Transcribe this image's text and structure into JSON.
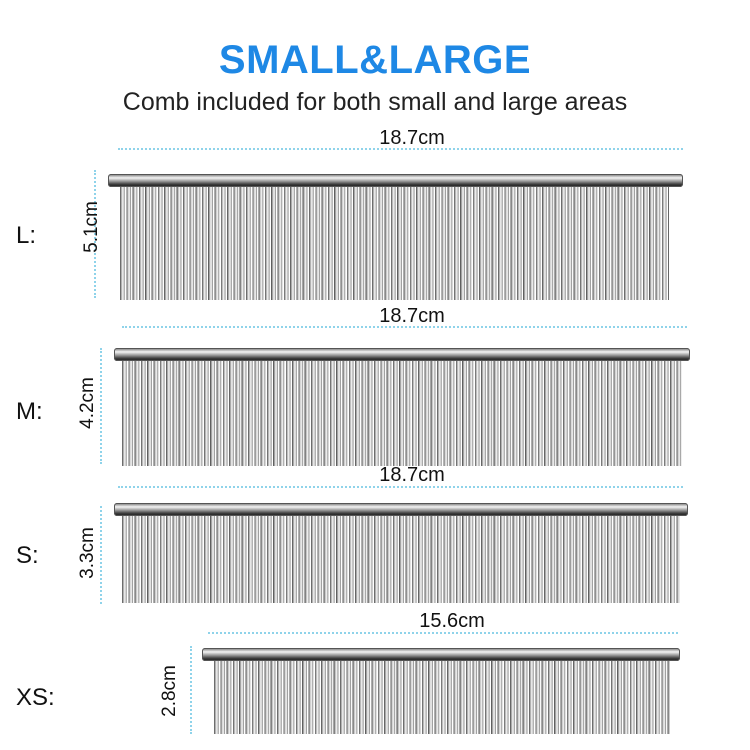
{
  "header": {
    "title": "SMALL&LARGE",
    "subtitle": "Comb included for both small and large areas"
  },
  "combs": [
    {
      "size": "L:",
      "width": "18.7cm",
      "height": "5.1cm"
    },
    {
      "size": "M:",
      "width": "18.7cm",
      "height": "4.2cm"
    },
    {
      "size": "S:",
      "width": "18.7cm",
      "height": "3.3cm"
    },
    {
      "size": "XS:",
      "width": "15.6cm",
      "height": "2.8cm"
    }
  ]
}
